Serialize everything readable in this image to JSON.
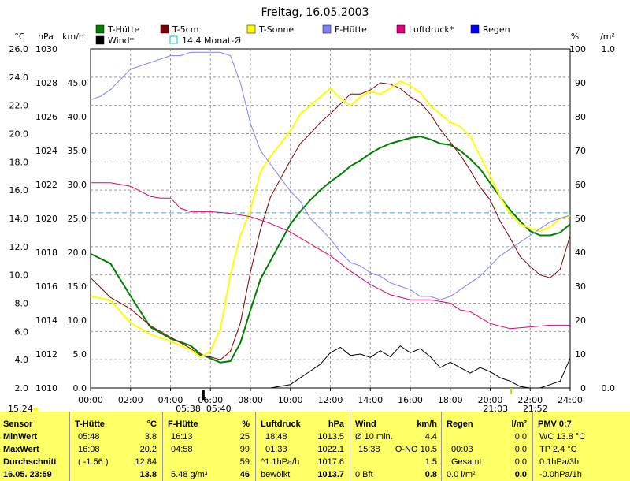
{
  "chart_data": {
    "type": "line",
    "title": "Freitag, 16.05.2003",
    "x_ticks": [
      "00:00",
      "02:00",
      "04:00",
      "06:00",
      "08:00",
      "10:00",
      "12:00",
      "14:00",
      "16:00",
      "18:00",
      "20:00",
      "22:00",
      "24:00"
    ],
    "axes": {
      "temp_c": {
        "unit": "°C",
        "min": 2.0,
        "max": 26.0,
        "ticks": [
          "26.0",
          "24.0",
          "22.0",
          "20.0",
          "18.0",
          "16.0",
          "14.0",
          "12.0",
          "10.0",
          "8.0",
          "6.0",
          "4.0",
          "2.0"
        ]
      },
      "pressure_hpa": {
        "unit": "hPa",
        "min": 1010,
        "max": 1030,
        "ticks": [
          "1030",
          "1028",
          "1026",
          "1024",
          "1022",
          "1020",
          "1018",
          "1016",
          "1014",
          "1012",
          "1010"
        ]
      },
      "wind_kmh": {
        "unit": "km/h",
        "min": 0,
        "max": 50,
        "ticks": [
          "45.0",
          "40.0",
          "35.0",
          "30.0",
          "25.0",
          "20.0",
          "15.0",
          "10.0",
          "5.0",
          "0.0"
        ]
      },
      "humidity_pct": {
        "unit": "%",
        "min": 0,
        "max": 100,
        "ticks": [
          "100",
          "90",
          "80",
          "70",
          "60",
          "50",
          "40",
          "30",
          "20",
          "10",
          "0"
        ]
      },
      "rain_lm2": {
        "unit": "l/m²",
        "min": 0,
        "max": 1,
        "ticks": [
          "1.0",
          "0.0"
        ]
      }
    },
    "legend": [
      {
        "name": "T-Hütte",
        "color": "#008000"
      },
      {
        "name": "T-5cm",
        "color": "#800000"
      },
      {
        "name": "T-Sonne",
        "color": "#ffff00"
      },
      {
        "name": "F-Hütte",
        "color": "#8080ff"
      },
      {
        "name": "Luftdruck*",
        "color": "#e0007f"
      },
      {
        "name": "Regen",
        "color": "#0000ff"
      },
      {
        "name": "Wind*",
        "color": "#000000"
      },
      {
        "name": "14.4 Monat-Ø",
        "color": "#00c8c8"
      }
    ],
    "monthly_mean_c": 14.4,
    "series": [
      {
        "name": "T-Hütte",
        "axis": "temp_c",
        "color": "#008000",
        "x": [
          0,
          1,
          2,
          3,
          4,
          5,
          5.5,
          6,
          6.5,
          7,
          7.5,
          8,
          8.5,
          9,
          9.5,
          10,
          10.5,
          11,
          11.5,
          12,
          12.5,
          13,
          13.5,
          14,
          14.5,
          15,
          15.5,
          16,
          16.5,
          17,
          17.5,
          18,
          18.5,
          19,
          19.5,
          20,
          20.5,
          21,
          21.5,
          22,
          22.5,
          23,
          23.5,
          24
        ],
        "y": [
          11.5,
          10.8,
          8.5,
          6.3,
          5.5,
          5.0,
          4.4,
          4.1,
          3.8,
          3.9,
          5.2,
          7.5,
          9.7,
          11.0,
          12.3,
          13.6,
          14.5,
          15.3,
          16.0,
          16.6,
          17.1,
          17.7,
          18.1,
          18.6,
          19.0,
          19.3,
          19.5,
          19.7,
          19.8,
          19.6,
          19.3,
          19.2,
          18.8,
          18.2,
          17.5,
          16.5,
          15.5,
          14.6,
          13.8,
          13.1,
          12.8,
          12.8,
          13.0,
          13.6
        ]
      },
      {
        "name": "T-5cm",
        "axis": "temp_c",
        "color": "#800000",
        "x": [
          0,
          1,
          2,
          3,
          4,
          5,
          5.5,
          6,
          6.5,
          7,
          7.5,
          8,
          8.5,
          9,
          9.5,
          10,
          10.5,
          11,
          11.5,
          12,
          12.5,
          13,
          13.5,
          14,
          14.5,
          15,
          15.5,
          16,
          16.5,
          17,
          17.5,
          18,
          18.5,
          19,
          19.5,
          20,
          20.5,
          21,
          21.5,
          22,
          22.5,
          23,
          23.5,
          24
        ],
        "y": [
          9.8,
          8.4,
          7.6,
          6.4,
          5.6,
          4.8,
          4.3,
          4.2,
          4.0,
          4.6,
          6.6,
          10.2,
          13.2,
          15.5,
          16.8,
          18.1,
          19.3,
          20.0,
          20.8,
          21.4,
          22.1,
          22.8,
          22.8,
          23.1,
          23.6,
          23.5,
          23.2,
          22.6,
          22.2,
          21.4,
          20.3,
          19.4,
          18.5,
          17.4,
          16.2,
          15.3,
          13.8,
          12.6,
          11.3,
          10.6,
          10.0,
          9.8,
          10.4,
          12.8
        ]
      },
      {
        "name": "T-Sonne",
        "axis": "temp_c",
        "color": "#ffff00",
        "x": [
          0,
          1,
          2,
          3,
          4,
          5,
          5.5,
          6,
          6.5,
          7,
          7.5,
          8,
          8.5,
          9,
          9.5,
          10,
          10.5,
          11,
          11.5,
          12,
          12.5,
          13,
          13.5,
          14,
          14.5,
          15,
          15.5,
          16,
          16.5,
          17,
          17.5,
          18,
          18.5,
          19,
          19.5,
          20,
          20.5,
          21,
          21.5,
          22,
          22.5,
          23,
          23.5,
          24
        ],
        "y": [
          8.5,
          8.2,
          6.6,
          5.8,
          5.3,
          4.7,
          4.2,
          4.6,
          6.2,
          10.0,
          12.8,
          14.6,
          17.3,
          18.4,
          19.3,
          20.2,
          21.4,
          22.0,
          22.6,
          23.2,
          22.5,
          22.0,
          22.6,
          23.0,
          22.8,
          23.2,
          23.7,
          23.4,
          22.9,
          22.0,
          21.4,
          20.8,
          20.5,
          19.8,
          18.4,
          17.0,
          15.5,
          14.3,
          13.6,
          13.3,
          13.1,
          13.4,
          14.0,
          14.2
        ]
      },
      {
        "name": "F-Hütte",
        "axis": "humidity_pct",
        "color": "#8080ff",
        "x": [
          0,
          0.5,
          1,
          1.5,
          2,
          2.5,
          3,
          3.5,
          4,
          4.5,
          5,
          5.5,
          6,
          6.5,
          7,
          7.5,
          8,
          8.5,
          9,
          9.5,
          10,
          10.5,
          11,
          11.5,
          12,
          12.5,
          13,
          13.5,
          14,
          14.5,
          15,
          15.5,
          16,
          16.5,
          17,
          17.5,
          18,
          18.5,
          19,
          19.5,
          20,
          20.5,
          21,
          21.5,
          22,
          22.5,
          23,
          23.5,
          24
        ],
        "y": [
          85,
          86,
          88,
          91,
          94,
          95,
          96,
          97,
          98,
          98,
          99,
          99,
          99,
          99,
          98,
          90,
          78,
          70,
          66,
          62,
          58,
          55,
          50,
          47,
          44,
          40,
          37,
          36,
          34,
          33,
          31,
          30,
          29,
          27,
          27,
          26,
          27,
          29,
          31,
          33,
          36,
          39,
          41,
          43,
          45,
          47,
          49,
          50,
          51
        ]
      },
      {
        "name": "Luftdruck*",
        "axis": "pressure_hpa",
        "color": "#e0007f",
        "x": [
          0,
          1,
          2,
          3,
          3.5,
          4,
          4.5,
          5,
          5.5,
          6,
          7,
          8,
          9,
          10,
          11,
          12,
          13,
          14,
          15,
          16,
          17,
          18,
          18.5,
          19,
          20,
          21,
          22,
          23,
          24
        ],
        "y": [
          1022.1,
          1022.1,
          1021.9,
          1021.3,
          1021.2,
          1021.2,
          1020.6,
          1020.4,
          1020.4,
          1020.4,
          1020.3,
          1020.1,
          1019.7,
          1019.2,
          1018.5,
          1017.8,
          1016.9,
          1016.1,
          1015.5,
          1015.2,
          1015.2,
          1015.0,
          1014.6,
          1014.5,
          1013.8,
          1013.5,
          1013.6,
          1013.7,
          1013.7
        ]
      },
      {
        "name": "Wind*",
        "axis": "wind_kmh",
        "color": "#000000",
        "x": [
          0,
          6,
          9,
          10,
          10.5,
          11,
          11.5,
          12,
          12.5,
          13,
          13.5,
          14,
          14.5,
          15,
          15.5,
          16,
          16.5,
          17,
          17.5,
          18,
          18.5,
          19,
          19.5,
          20,
          20.5,
          21,
          21.5,
          22,
          22.5,
          23,
          23.5,
          24
        ],
        "y": [
          0,
          0,
          0,
          0.5,
          1.5,
          2.5,
          3.5,
          5.2,
          6.0,
          4.8,
          5.0,
          4.5,
          5.5,
          4.6,
          6.2,
          5.2,
          5.8,
          4.6,
          3.0,
          3.8,
          3.0,
          2.2,
          3.0,
          2.4,
          1.5,
          1.0,
          0.2,
          0,
          0,
          0.5,
          1.0,
          4.4
        ]
      }
    ],
    "markers": [
      {
        "label": "05:38",
        "x": 5.63
      },
      {
        "label": "05:40",
        "x": 5.67
      },
      {
        "label": "21:03",
        "x": 21.05
      },
      {
        "label": "21:52",
        "x": 21.87
      }
    ],
    "sunrise_label": "15:24"
  },
  "panel": {
    "sensor": {
      "title": "Sensor",
      "rows": [
        "MinWert",
        "MaxWert",
        "Durchschnitt"
      ],
      "footer": "16.05. 23:59"
    },
    "t_huette": {
      "title": "T-Hütte",
      "unit": "°C",
      "min_time": "05:48",
      "min_val": "3.8",
      "max_time": "16:08",
      "max_val": "20.2",
      "avg_note": "( -1.56 )",
      "avg_val": "12.84",
      "current": "13.8"
    },
    "f_huette": {
      "title": "F-Hütte",
      "unit": "%",
      "min_time": "16:13",
      "min_val": "25",
      "max_time": "04:58",
      "max_val": "99",
      "avg_val": "59",
      "abs": "5.48 g/m³",
      "current": "46"
    },
    "luftdruck": {
      "title": "Luftdruck",
      "unit": "hPa",
      "min_time": "18:48",
      "min_val": "1013.5",
      "max_time": "01:33",
      "max_val": "1022.1",
      "trend": "^1.1hPa/h",
      "avg_val": "1017.6",
      "sky": "bewölkt",
      "current": "1013.7"
    },
    "wind": {
      "title": "Wind",
      "unit": "km/h",
      "r1_label": "Ø 10 min.",
      "r1_val": "4.4",
      "r2_time": "15:38",
      "r2_dir": "O-NO 10.5",
      "r3_val": "1.5",
      "bft": "0 Bft",
      "current": "0.8"
    },
    "regen": {
      "title": "Regen",
      "unit": "l/m²",
      "r1_label": "",
      "r1_val": "0.0",
      "r2_time": "00:03",
      "r2_val": "0.0",
      "r3_label": "Gesamt:",
      "r3_val": "0.0",
      "rate": "0.0 l/m²",
      "current": "0.0"
    },
    "pmv": {
      "title": "PMV 0:7",
      "wc": "WC 13.8 °C",
      "tp": "TP 2.4 °C",
      "p3h": "0.1hPa/3h",
      "p1h": "-0.0hPa/1h"
    }
  }
}
